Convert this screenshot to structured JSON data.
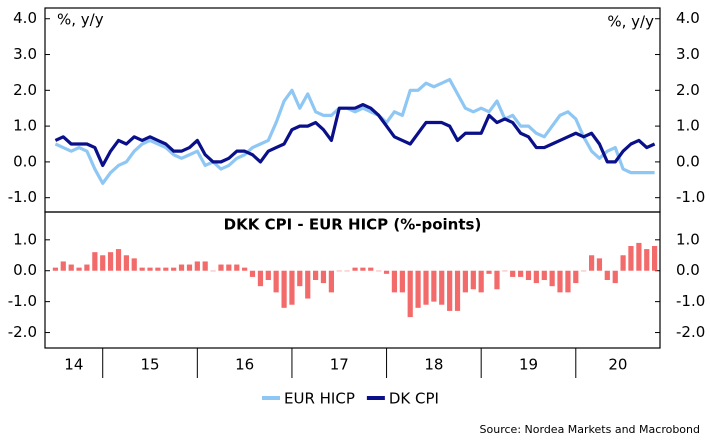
{
  "chart_data": [
    {
      "type": "line",
      "ylabel": "%, y/y",
      "y2label": "%, y/y",
      "x": [
        2014.5,
        2014.583,
        2014.667,
        2014.75,
        2014.833,
        2014.917,
        2015,
        2015.083,
        2015.167,
        2015.25,
        2015.333,
        2015.417,
        2015.5,
        2015.583,
        2015.667,
        2015.75,
        2015.833,
        2015.917,
        2016,
        2016.083,
        2016.167,
        2016.25,
        2016.333,
        2016.417,
        2016.5,
        2016.583,
        2016.667,
        2016.75,
        2016.833,
        2016.917,
        2017,
        2017.083,
        2017.167,
        2017.25,
        2017.333,
        2017.417,
        2017.5,
        2017.583,
        2017.667,
        2017.75,
        2017.833,
        2017.917,
        2018,
        2018.083,
        2018.167,
        2018.25,
        2018.333,
        2018.417,
        2018.5,
        2018.583,
        2018.667,
        2018.75,
        2018.833,
        2018.917,
        2019,
        2019.083,
        2019.167,
        2019.25,
        2019.333,
        2019.417,
        2019.5,
        2019.583,
        2019.667,
        2019.75,
        2019.833,
        2019.917,
        2020,
        2020.083,
        2020.167,
        2020.25,
        2020.333,
        2020.417,
        2020.5,
        2020.583,
        2020.667,
        2020.75,
        2020.833
      ],
      "xlim": [
        2014.39,
        2020.89
      ],
      "series": [
        {
          "name": "EUR HICP",
          "color": "#8fc7f4",
          "values": [
            0.5,
            0.4,
            0.3,
            0.4,
            0.3,
            -0.2,
            -0.6,
            -0.3,
            -0.1,
            0.0,
            0.3,
            0.5,
            0.6,
            0.5,
            0.4,
            0.2,
            0.1,
            0.2,
            0.3,
            -0.1,
            0.0,
            -0.2,
            -0.1,
            0.1,
            0.2,
            0.4,
            0.5,
            0.6,
            1.1,
            1.7,
            2.0,
            1.5,
            1.9,
            1.4,
            1.3,
            1.3,
            1.5,
            1.5,
            1.4,
            1.5,
            1.4,
            1.3,
            1.1,
            1.4,
            1.3,
            2.0,
            2.0,
            2.2,
            2.1,
            2.2,
            2.3,
            1.9,
            1.5,
            1.4,
            1.5,
            1.4,
            1.7,
            1.2,
            1.3,
            1.0,
            1.0,
            0.8,
            0.7,
            1.0,
            1.3,
            1.4,
            1.2,
            0.7,
            0.3,
            0.1,
            0.3,
            0.4,
            -0.2,
            -0.3,
            -0.3,
            -0.3,
            -0.3
          ]
        },
        {
          "name": "DK CPI",
          "color": "#0a0f8a",
          "values": [
            0.6,
            0.7,
            0.5,
            0.5,
            0.5,
            0.4,
            -0.1,
            0.3,
            0.6,
            0.5,
            0.7,
            0.6,
            0.7,
            0.6,
            0.5,
            0.3,
            0.3,
            0.4,
            0.6,
            0.2,
            0.0,
            0.0,
            0.1,
            0.3,
            0.3,
            0.2,
            0.0,
            0.3,
            0.4,
            0.5,
            0.9,
            1.0,
            1.0,
            1.1,
            0.9,
            0.6,
            1.5,
            1.5,
            1.5,
            1.6,
            1.5,
            1.3,
            1.0,
            0.7,
            0.6,
            0.5,
            0.8,
            1.1,
            1.1,
            1.1,
            1.0,
            0.6,
            0.8,
            0.8,
            0.8,
            1.3,
            1.1,
            1.2,
            1.1,
            0.8,
            0.7,
            0.4,
            0.4,
            0.5,
            0.6,
            0.7,
            0.8,
            0.7,
            0.8,
            0.5,
            0.0,
            0.0,
            0.3,
            0.5,
            0.6,
            0.4,
            0.5
          ]
        }
      ],
      "ylim": [
        -1.4,
        4.3
      ],
      "yticks": [
        {
          "value": 4,
          "label": "4.0"
        },
        {
          "value": 3,
          "label": "3.0"
        },
        {
          "value": 2,
          "label": "2.0"
        },
        {
          "value": 1,
          "label": "1.0"
        },
        {
          "value": 0,
          "label": "0.0"
        },
        {
          "value": -1,
          "label": "-1.0"
        }
      ],
      "y2lim": [
        -1.4,
        4.3
      ],
      "y2ticks": [
        {
          "value": 4,
          "label": "4.0"
        },
        {
          "value": 3,
          "label": "3.0"
        },
        {
          "value": 2,
          "label": "2.0"
        },
        {
          "value": 1,
          "label": "1.0"
        },
        {
          "value": 0,
          "label": "0.0"
        },
        {
          "value": -1,
          "label": "-1.0"
        }
      ]
    },
    {
      "type": "bar",
      "title": "DKK CPI - EUR HICP (%-points)",
      "x": [
        2014.5,
        2014.583,
        2014.667,
        2014.75,
        2014.833,
        2014.917,
        2015,
        2015.083,
        2015.167,
        2015.25,
        2015.333,
        2015.417,
        2015.5,
        2015.583,
        2015.667,
        2015.75,
        2015.833,
        2015.917,
        2016,
        2016.083,
        2016.167,
        2016.25,
        2016.333,
        2016.417,
        2016.5,
        2016.583,
        2016.667,
        2016.75,
        2016.833,
        2016.917,
        2017,
        2017.083,
        2017.167,
        2017.25,
        2017.333,
        2017.417,
        2017.5,
        2017.583,
        2017.667,
        2017.75,
        2017.833,
        2017.917,
        2018,
        2018.083,
        2018.167,
        2018.25,
        2018.333,
        2018.417,
        2018.5,
        2018.583,
        2018.667,
        2018.75,
        2018.833,
        2018.917,
        2019,
        2019.083,
        2019.167,
        2019.25,
        2019.333,
        2019.417,
        2019.5,
        2019.583,
        2019.667,
        2019.75,
        2019.833,
        2019.917,
        2020,
        2020.083,
        2020.167,
        2020.25,
        2020.333,
        2020.417,
        2020.5,
        2020.583,
        2020.667,
        2020.75,
        2020.833
      ],
      "xlim": [
        2014.39,
        2020.89
      ],
      "xticks": [
        {
          "value": 2014,
          "label": "14"
        },
        {
          "value": 2015,
          "label": "15"
        },
        {
          "value": 2016,
          "label": "16"
        },
        {
          "value": 2017,
          "label": "17"
        },
        {
          "value": 2018,
          "label": "18"
        },
        {
          "value": 2019,
          "label": "19"
        },
        {
          "value": 2020,
          "label": "20"
        }
      ],
      "color": "#f26a6a",
      "values": [
        0.1,
        0.3,
        0.2,
        0.1,
        0.2,
        0.6,
        0.5,
        0.6,
        0.7,
        0.5,
        0.4,
        0.1,
        0.1,
        0.1,
        0.1,
        0.1,
        0.2,
        0.2,
        0.3,
        0.3,
        0.0,
        0.2,
        0.2,
        0.2,
        0.1,
        -0.2,
        -0.5,
        -0.3,
        -0.7,
        -1.2,
        -1.1,
        -0.5,
        -0.9,
        -0.3,
        -0.4,
        -0.7,
        0.0,
        0.0,
        0.1,
        0.1,
        0.1,
        0.0,
        -0.1,
        -0.7,
        -0.7,
        -1.5,
        -1.2,
        -1.1,
        -1.0,
        -1.1,
        -1.3,
        -1.3,
        -0.7,
        -0.6,
        -0.7,
        -0.1,
        -0.6,
        0.0,
        -0.2,
        -0.2,
        -0.3,
        -0.4,
        -0.3,
        -0.5,
        -0.7,
        -0.7,
        -0.4,
        0.0,
        0.5,
        0.4,
        -0.3,
        -0.4,
        0.5,
        0.8,
        0.9,
        0.7,
        0.8
      ],
      "ylim": [
        -2.5,
        1.9
      ],
      "yticks": [
        {
          "value": 1,
          "label": "1.0"
        },
        {
          "value": 0,
          "label": "0.0"
        },
        {
          "value": -1,
          "label": "-1.0"
        },
        {
          "value": -2,
          "label": "-2.0"
        }
      ],
      "y2lim": [
        -2.5,
        1.9
      ],
      "y2ticks": [
        {
          "value": 1,
          "label": "1.0"
        },
        {
          "value": 0,
          "label": "0.0"
        },
        {
          "value": -1,
          "label": "-1.0"
        },
        {
          "value": -2,
          "label": "-2.0"
        }
      ]
    }
  ],
  "source": "Source: Nordea Markets and Macrobond"
}
